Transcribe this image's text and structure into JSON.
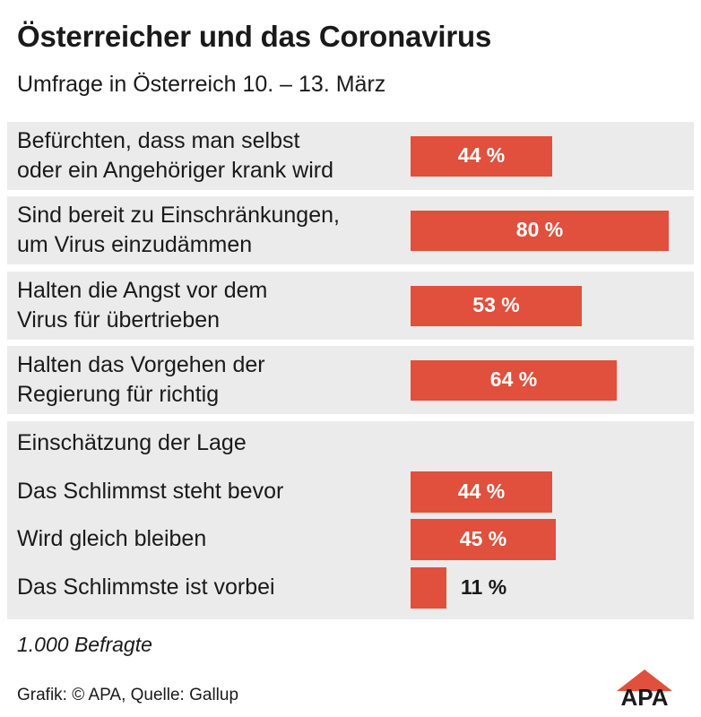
{
  "title": "Österreicher und das Coronavirus",
  "subtitle": "Umfrage in Österreich 10. – 13. März",
  "chart_data": {
    "type": "bar",
    "orientation": "horizontal",
    "title": "Österreicher und das Coronavirus",
    "subtitle": "Umfrage in Österreich 10. – 13. März",
    "unit": "%",
    "xlim": [
      0,
      100
    ],
    "bar_color": "#e0503c",
    "groups": [
      {
        "heading": "",
        "categories": [
          "Befürchten, dass man selbst\noder ein Angehöriger krank wird",
          "Sind bereit zu Einschränkungen,\num Virus einzudämmen",
          "Halten die Angst vor dem\nVirus für übertrieben",
          "Halten das Vorgehen der\nRegierung für richtig"
        ],
        "values": [
          44,
          80,
          53,
          64
        ],
        "value_labels": [
          "44 %",
          "80 %",
          "53 %",
          "64 %"
        ]
      },
      {
        "heading": "Einschätzung der Lage",
        "categories": [
          "Das Schlimmst steht bevor",
          "Wird gleich bleiben",
          "Das Schlimmste ist vorbei"
        ],
        "values": [
          44,
          45,
          11
        ],
        "value_labels": [
          "44 %",
          "45 %",
          "11 %"
        ]
      }
    ]
  },
  "note": "1.000 Befragte",
  "credit": "Grafik: © APA, Quelle: Gallup",
  "logo": {
    "text": "APA",
    "color": "#e0503c"
  }
}
